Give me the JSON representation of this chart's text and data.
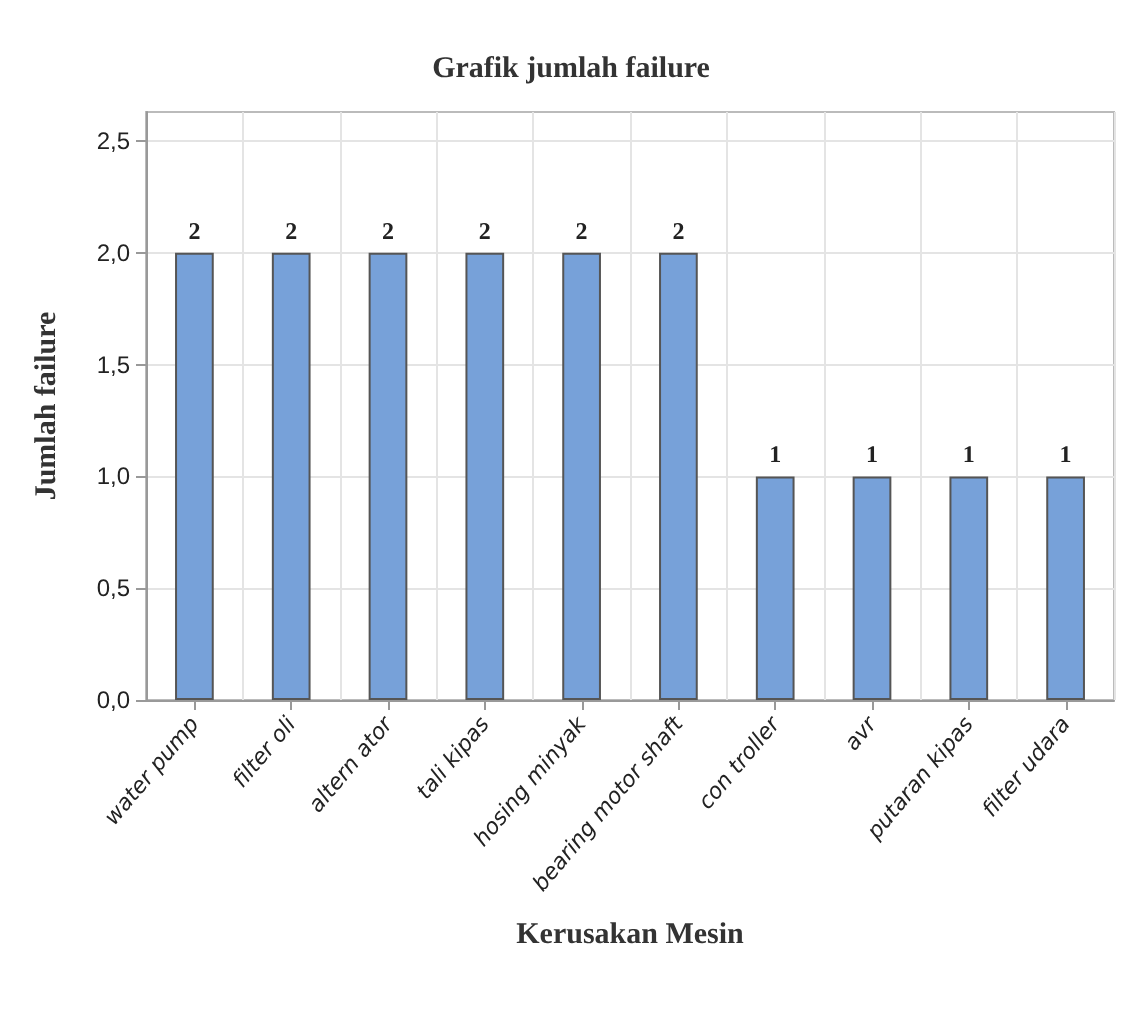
{
  "chart_data": {
    "type": "bar",
    "title": "Grafik jumlah failure",
    "xlabel": "Kerusakan Mesin",
    "ylabel": "Jumlah failure",
    "categories": [
      "water pump",
      "filter oli",
      "altern ator",
      "tali kipas",
      "hosing minyak",
      "bearing motor shaft",
      "con troller",
      "avr",
      "putaran kipas",
      "filter udara"
    ],
    "values": [
      2,
      2,
      2,
      2,
      2,
      2,
      1,
      1,
      1,
      1
    ],
    "color": "#77a1d9",
    "ylim": [
      0,
      2.63
    ],
    "yticks": [
      {
        "value": 0,
        "label": "0,0"
      },
      {
        "value": 0.5,
        "label": "0,5"
      },
      {
        "value": 1,
        "label": "1,0"
      },
      {
        "value": 1.5,
        "label": "1,5"
      },
      {
        "value": 2,
        "label": "2,0"
      },
      {
        "value": 2.5,
        "label": "2,5"
      }
    ],
    "grid": true,
    "data_labels": true
  }
}
